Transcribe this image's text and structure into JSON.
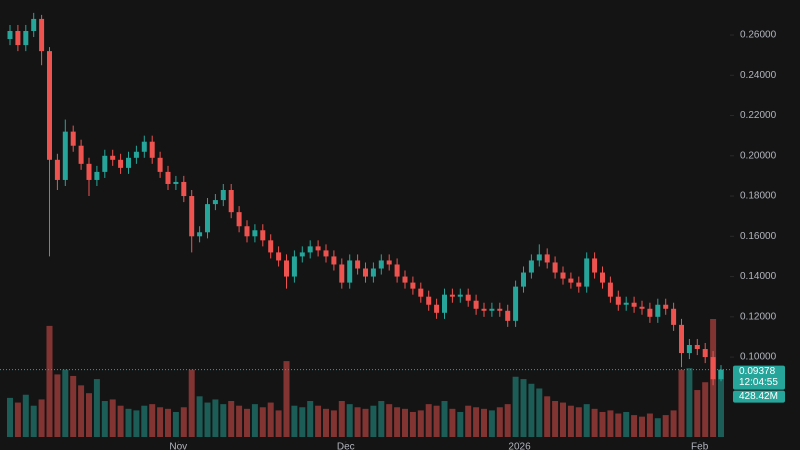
{
  "chart_data": {
    "type": "candlestick",
    "up_color": "#26a69a",
    "down_color": "#ef5350",
    "ylim": [
      0.0588,
      0.2774
    ],
    "yticks": [
      {
        "value": 0.1,
        "label": "0.10000"
      },
      {
        "value": 0.12,
        "label": "0.12000"
      },
      {
        "value": 0.14,
        "label": "0.14000"
      },
      {
        "value": 0.16,
        "label": "0.16000"
      },
      {
        "value": 0.18,
        "label": "0.18000"
      },
      {
        "value": 0.2,
        "label": "0.20000"
      },
      {
        "value": 0.22,
        "label": "0.22000"
      },
      {
        "value": 0.24,
        "label": "0.24000"
      },
      {
        "value": 0.26,
        "label": "0.26000"
      }
    ],
    "xticks": [
      {
        "value": 21.3,
        "label": "Nov"
      },
      {
        "value": 42.5,
        "label": "Dec"
      },
      {
        "value": 64.5,
        "label": "2026"
      },
      {
        "value": 87.3,
        "label": "Feb"
      }
    ],
    "open": [
      0.258,
      0.262,
      0.255,
      0.262,
      0.268,
      0.252,
      0.198,
      0.188,
      0.212,
      0.205,
      0.196,
      0.188,
      0.192,
      0.2,
      0.198,
      0.194,
      0.199,
      0.202,
      0.207,
      0.199,
      0.192,
      0.186,
      0.187,
      0.18,
      0.16,
      0.162,
      0.176,
      0.178,
      0.183,
      0.172,
      0.165,
      0.16,
      0.163,
      0.158,
      0.152,
      0.148,
      0.14,
      0.15,
      0.152,
      0.155,
      0.153,
      0.15,
      0.146,
      0.137,
      0.148,
      0.144,
      0.14,
      0.144,
      0.148,
      0.146,
      0.14,
      0.137,
      0.134,
      0.13,
      0.126,
      0.122,
      0.131,
      0.13,
      0.131,
      0.128,
      0.124,
      0.123,
      0.124,
      0.123,
      0.118,
      0.135,
      0.142,
      0.148,
      0.151,
      0.147,
      0.142,
      0.139,
      0.137,
      0.135,
      0.149,
      0.142,
      0.137,
      0.13,
      0.126,
      0.127,
      0.125,
      0.124,
      0.12,
      0.126,
      0.124,
      0.116,
      0.102,
      0.106,
      0.104,
      0.1,
      0.089
    ],
    "high": [
      0.265,
      0.265,
      0.265,
      0.271,
      0.27,
      0.254,
      0.201,
      0.218,
      0.215,
      0.208,
      0.199,
      0.195,
      0.203,
      0.203,
      0.201,
      0.202,
      0.205,
      0.21,
      0.21,
      0.202,
      0.195,
      0.19,
      0.19,
      0.183,
      0.165,
      0.179,
      0.181,
      0.186,
      0.186,
      0.175,
      0.168,
      0.166,
      0.166,
      0.161,
      0.155,
      0.151,
      0.153,
      0.155,
      0.158,
      0.158,
      0.156,
      0.153,
      0.149,
      0.151,
      0.151,
      0.147,
      0.147,
      0.151,
      0.151,
      0.149,
      0.143,
      0.14,
      0.137,
      0.133,
      0.129,
      0.134,
      0.134,
      0.134,
      0.134,
      0.131,
      0.127,
      0.127,
      0.127,
      0.126,
      0.138,
      0.145,
      0.151,
      0.156,
      0.154,
      0.15,
      0.145,
      0.142,
      0.14,
      0.152,
      0.152,
      0.145,
      0.14,
      0.133,
      0.13,
      0.13,
      0.128,
      0.127,
      0.129,
      0.129,
      0.127,
      0.119,
      0.109,
      0.109,
      0.107,
      0.103,
      0.096
    ],
    "low": [
      0.255,
      0.252,
      0.252,
      0.259,
      0.245,
      0.15,
      0.183,
      0.185,
      0.202,
      0.193,
      0.18,
      0.185,
      0.189,
      0.195,
      0.191,
      0.191,
      0.196,
      0.199,
      0.196,
      0.189,
      0.183,
      0.183,
      0.177,
      0.152,
      0.157,
      0.159,
      0.173,
      0.175,
      0.169,
      0.162,
      0.157,
      0.157,
      0.155,
      0.149,
      0.145,
      0.134,
      0.137,
      0.147,
      0.149,
      0.15,
      0.147,
      0.143,
      0.134,
      0.134,
      0.141,
      0.137,
      0.137,
      0.141,
      0.143,
      0.137,
      0.134,
      0.131,
      0.127,
      0.123,
      0.119,
      0.119,
      0.127,
      0.127,
      0.125,
      0.121,
      0.12,
      0.12,
      0.12,
      0.115,
      0.115,
      0.132,
      0.139,
      0.145,
      0.144,
      0.139,
      0.136,
      0.134,
      0.132,
      0.132,
      0.139,
      0.134,
      0.127,
      0.123,
      0.123,
      0.122,
      0.121,
      0.117,
      0.117,
      0.121,
      0.113,
      0.095,
      0.099,
      0.101,
      0.097,
      0.086,
      0.088
    ],
    "close": [
      0.262,
      0.255,
      0.262,
      0.268,
      0.252,
      0.198,
      0.188,
      0.212,
      0.205,
      0.196,
      0.188,
      0.192,
      0.2,
      0.198,
      0.194,
      0.199,
      0.202,
      0.207,
      0.199,
      0.192,
      0.186,
      0.187,
      0.18,
      0.16,
      0.162,
      0.176,
      0.178,
      0.183,
      0.172,
      0.165,
      0.16,
      0.163,
      0.158,
      0.152,
      0.148,
      0.14,
      0.15,
      0.152,
      0.155,
      0.153,
      0.15,
      0.146,
      0.137,
      0.148,
      0.144,
      0.14,
      0.144,
      0.148,
      0.146,
      0.14,
      0.137,
      0.134,
      0.13,
      0.126,
      0.122,
      0.131,
      0.13,
      0.131,
      0.128,
      0.124,
      0.123,
      0.124,
      0.123,
      0.118,
      0.135,
      0.142,
      0.148,
      0.151,
      0.147,
      0.142,
      0.139,
      0.137,
      0.135,
      0.149,
      0.142,
      0.137,
      0.13,
      0.126,
      0.127,
      0.125,
      0.124,
      0.12,
      0.126,
      0.124,
      0.116,
      0.102,
      0.106,
      0.104,
      0.1,
      0.089,
      0.09378
    ],
    "volume": [
      250,
      220,
      270,
      200,
      240,
      710,
      400,
      430,
      390,
      330,
      280,
      370,
      230,
      240,
      200,
      180,
      170,
      200,
      210,
      190,
      180,
      160,
      190,
      430,
      260,
      220,
      240,
      210,
      230,
      200,
      180,
      210,
      190,
      220,
      170,
      485,
      200,
      190,
      230,
      200,
      180,
      170,
      230,
      210,
      190,
      180,
      200,
      230,
      210,
      190,
      180,
      160,
      170,
      210,
      200,
      230,
      180,
      160,
      200,
      190,
      180,
      170,
      190,
      210,
      385,
      370,
      340,
      310,
      260,
      230,
      220,
      200,
      190,
      210,
      180,
      160,
      170,
      150,
      160,
      140,
      130,
      150,
      120,
      140,
      170,
      430,
      440,
      300,
      350,
      754,
      428.42
    ],
    "last_volume_label": "428.42M",
    "countdown": "12:04:55"
  }
}
